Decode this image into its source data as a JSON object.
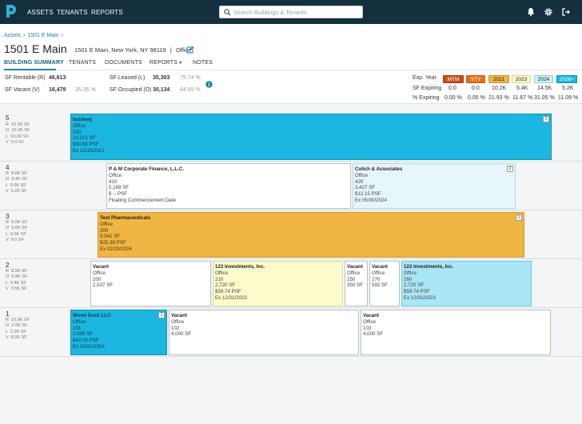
{
  "nav": {
    "items": [
      "ASSETS",
      "TENANTS",
      "REPORTS"
    ],
    "search_placeholder": "Search Buildings & Tenants"
  },
  "breadcrumb": {
    "root": "Assets",
    "current": "1501 E Main"
  },
  "header": {
    "title": "1501 E Main",
    "address": "1501 E Main, New York, NY 98119",
    "type": "Office"
  },
  "tabs": [
    "BUILDING SUMMARY",
    "TENANTS",
    "DOCUMENTS",
    "REPORTS",
    "NOTES"
  ],
  "stats": {
    "sf_rentable_label": "SF Rentable (R)",
    "sf_rentable": "46,613",
    "sf_vacant_label": "SF Vacant (V)",
    "sf_vacant": "16,479",
    "sf_vacant_pct": "35.35 %",
    "sf_leased_label": "SF Leased (L)",
    "sf_leased": "35,303",
    "sf_leased_pct": "75.74 %",
    "sf_occupied_label": "SF Occupied (O)",
    "sf_occupied": "30,134",
    "sf_occupied_pct": "64.65 %"
  },
  "expiry": {
    "year_label": "Exp. Year",
    "sf_label": "SF Expiring",
    "pct_label": "% Expiring",
    "years": [
      {
        "label": "MTM",
        "sf": "0.0",
        "pct": "0.00 %",
        "color": "#c8501e"
      },
      {
        "label": "YTY",
        "sf": "0.0",
        "pct": "0.00 %",
        "color": "#e2741e"
      },
      {
        "label": "2021",
        "sf": "10.2K",
        "pct": "21.93 %",
        "color": "#f0b542"
      },
      {
        "label": "2023",
        "sf": "5.4K",
        "pct": "11.67 %",
        "color": "#fbfbcc"
      },
      {
        "label": "2024",
        "sf": "14.5K",
        "pct": "31.05 %",
        "color": "#cdeff8"
      },
      {
        "label": "2026+",
        "sf": "5.2K",
        "pct": "11.09 %",
        "color": "#1cb7e0"
      }
    ]
  },
  "floors": [
    {
      "num": "5",
      "stats": "R  10.2K SF\nO  10.2K SF\nL  10.2K SF\nV  0.0 SF"
    },
    {
      "num": "4",
      "stats": "R  8.6K SF\nO  3.4K SF\nL  8.6K SF\nV  5.2K SF"
    },
    {
      "num": "3",
      "stats": "R  9.0K SF\nO  9.0K SF\nL  9.0K SF\nV  0.0 SF"
    },
    {
      "num": "2",
      "stats": "R  8.9K SF\nO  5.4K SF\nL  5.4K SF\nV  3.5K SF"
    },
    {
      "num": "1",
      "stats": "R  10.0K SF\nO  2.0K SF\nL  2.0K SF\nV  8.0K SF"
    }
  ],
  "units": {
    "f5a": {
      "lines": [
        "buuteeq",
        "Office",
        "500",
        "10,221 SF",
        "$50.85 PSF",
        "Ex 12/15/2021"
      ],
      "badge": "1"
    },
    "f4a": {
      "lines": [
        "P & M Corporate Finance, L.L.C.",
        "Office",
        "410",
        "5,169 SF",
        "$ -- PSF",
        "Floating Commencement Date"
      ]
    },
    "f4b": {
      "lines": [
        "Colich & Associates",
        "Office",
        "420",
        "3,427 SF",
        "$12.15 PSF",
        "Ex 05/30/2024"
      ],
      "badge": "2"
    },
    "f3a": {
      "lines": [
        "Test Pharmaceuticals",
        "Office",
        "300",
        "9,041 SF",
        "$25.38 PSF",
        "Ex 02/29/2024"
      ],
      "badge": "1"
    },
    "f2a": {
      "lines": [
        "Vacant",
        "Office",
        "200",
        "2,537 SF"
      ]
    },
    "f2b": {
      "lines": [
        "123 Investments, Inc.",
        "Office",
        "210",
        "2,720 SF",
        "$59.74 PSF",
        "Ex 12/31/2023"
      ]
    },
    "f2c": {
      "lines": [
        "Vacant",
        "Office",
        "250",
        "350 SF"
      ]
    },
    "f2d": {
      "lines": [
        "Vacant",
        "Office",
        "270",
        "592 SF"
      ]
    },
    "f2e": {
      "lines": [
        "123 Investments, Inc.",
        "Office",
        "280",
        "2,720 SF",
        "$59.74 PSF",
        "Ex 12/31/2023"
      ]
    },
    "f1a": {
      "lines": [
        "Wood Duck LLC",
        "Office",
        "101",
        "2,005 SF",
        "$42.00 PSF",
        "Ex 03/31/2024"
      ],
      "badge": "1"
    },
    "f1b": {
      "lines": [
        "Vacant",
        "Office",
        "102",
        "4,000 SF"
      ]
    },
    "f1c": {
      "lines": [
        "Vacant",
        "Office",
        "103",
        "4,000 SF"
      ]
    }
  }
}
